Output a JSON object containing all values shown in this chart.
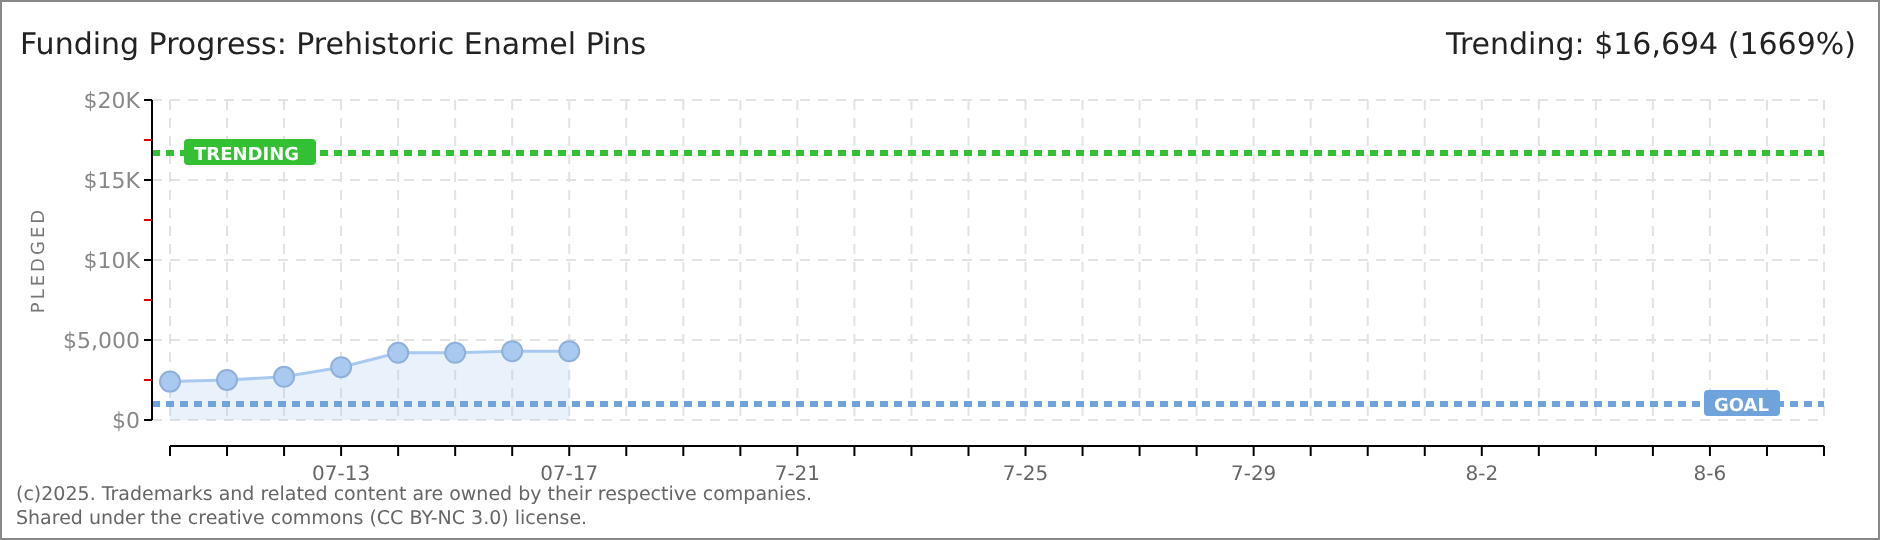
{
  "chart_data": {
    "type": "area",
    "title": "Funding Progress: Prehistoric Enamel Pins",
    "subtitle": "Trending: $16,694 (1669%)",
    "ylabel": "PLEDGED",
    "x": [
      "2025-07-10",
      "2025-07-11",
      "2025-07-12",
      "2025-07-13",
      "2025-07-14",
      "2025-07-15",
      "2025-07-16",
      "2025-07-17"
    ],
    "series": [
      {
        "color": "#a9c9f1",
        "values": [
          2400,
          2500,
          2700,
          3300,
          4200,
          4200,
          4300,
          4300
        ]
      }
    ],
    "xlim": [
      "2025-07-10",
      "2025-08-08"
    ],
    "xticks": [
      {
        "value": "2025-07-10",
        "label": null
      },
      {
        "value": "2025-07-11",
        "label": null
      },
      {
        "value": "2025-07-12",
        "label": null
      },
      {
        "value": "2025-07-13",
        "label": "07-13"
      },
      {
        "value": "2025-07-14",
        "label": null
      },
      {
        "value": "2025-07-15",
        "label": null
      },
      {
        "value": "2025-07-16",
        "label": null
      },
      {
        "value": "2025-07-17",
        "label": "07-17"
      },
      {
        "value": "2025-07-18",
        "label": null
      },
      {
        "value": "2025-07-19",
        "label": null
      },
      {
        "value": "2025-07-20",
        "label": null
      },
      {
        "value": "2025-07-21",
        "label": "7-21"
      },
      {
        "value": "2025-07-22",
        "label": null
      },
      {
        "value": "2025-07-23",
        "label": null
      },
      {
        "value": "2025-07-24",
        "label": null
      },
      {
        "value": "2025-07-25",
        "label": "7-25"
      },
      {
        "value": "2025-07-26",
        "label": null
      },
      {
        "value": "2025-07-27",
        "label": null
      },
      {
        "value": "2025-07-28",
        "label": null
      },
      {
        "value": "2025-07-29",
        "label": "7-29"
      },
      {
        "value": "2025-07-30",
        "label": null
      },
      {
        "value": "2025-07-31",
        "label": null
      },
      {
        "value": "2025-08-01",
        "label": null
      },
      {
        "value": "2025-08-02",
        "label": "8-2"
      },
      {
        "value": "2025-08-03",
        "label": null
      },
      {
        "value": "2025-08-04",
        "label": null
      },
      {
        "value": "2025-08-05",
        "label": null
      },
      {
        "value": "2025-08-06",
        "label": "8-6"
      },
      {
        "value": "2025-08-07",
        "label": null
      },
      {
        "value": "2025-08-08",
        "label": null
      }
    ],
    "ylim": [
      0,
      20000
    ],
    "yticks": [
      {
        "value": 0,
        "label": "$0"
      },
      {
        "value": 2500,
        "label": null
      },
      {
        "value": 5000,
        "label": "$5,000"
      },
      {
        "value": 7500,
        "label": null
      },
      {
        "value": 10000,
        "label": "$10K"
      },
      {
        "value": 12500,
        "label": null
      },
      {
        "value": 15000,
        "label": "$15K"
      },
      {
        "value": 17500,
        "label": null
      },
      {
        "value": 20000,
        "label": "$20K"
      }
    ],
    "grid": true,
    "marker": "circle",
    "line_style": "solid",
    "ref_lines": [
      {
        "axis": "y",
        "value": 16694,
        "label": "TRENDING",
        "color": "#33c133",
        "line_style": "dashed"
      },
      {
        "axis": "y",
        "value": 1000,
        "label": "GOAL",
        "color": "#6fa3dc",
        "line_style": "dashed"
      }
    ],
    "annotations": [
      "(c)2025. Trademarks and related content are owned by their respective companies.",
      "Shared under the creative commons (CC BY-NC 3.0) license."
    ]
  }
}
